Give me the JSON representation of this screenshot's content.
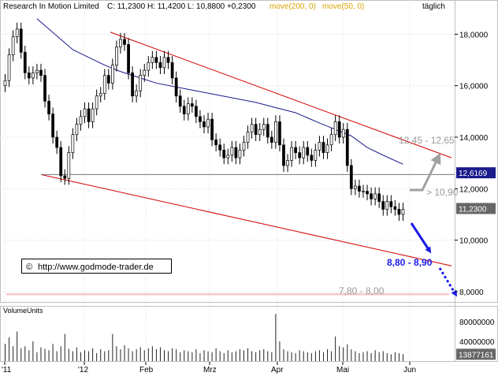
{
  "header": {
    "symbol": "Research In Motion Limited",
    "ohlc": "C: 11,2300  H: 11,4200  L: 10,8800  +0,2300",
    "ma1": "move(200, 0)",
    "ma2": "move(50, 0)",
    "period": "täglich"
  },
  "copyright": "http://www.godmode-trader.de",
  "volume_label": "VolumeUnits",
  "colors": {
    "candle": "#000000",
    "ma": "#1a1a8c",
    "channel": "#d40000",
    "support": "#000000",
    "price_box": "#1a1a8c",
    "support_box": "#666666",
    "zone": "#f7c6c6",
    "arrow_blue": "#1a1ae6",
    "arrow_grey": "#a0a0a0"
  },
  "chart_data": {
    "type": "candlestick",
    "title": "Research In Motion Limited",
    "x_labels": [
      "'11",
      "'12",
      "Feb",
      "Mrz",
      "Apr",
      "Mai",
      "Jun"
    ],
    "ylim": [
      7.6,
      18.9
    ],
    "y_ticks": [
      "18,0000",
      "16,0000",
      "14,0000",
      "12,0000",
      "10,0000",
      "8,0000"
    ],
    "y_tick_values": [
      18,
      16,
      14,
      12,
      10,
      8
    ],
    "last_price_label": "11,2300",
    "last_price": 11.23,
    "support_level_label": "12,6169",
    "support_level": 12.6169,
    "support_line_value": 12.55,
    "annotations": {
      "resistance_target": "12,45 - 12,65",
      "gt_level": "> 10,90",
      "blue_target": "8,80 - 8,90",
      "zone": "7,80 - 8,00"
    },
    "zone": [
      7.8,
      8.0
    ],
    "volume_axis": [
      "80000000",
      "40000000"
    ],
    "volume_axis_values": [
      80000000,
      40000000
    ],
    "last_volume_label": "13877161",
    "last_volume": 13877161,
    "volume_max": 96000000,
    "closes": [
      16.2,
      17.2,
      17.9,
      18.2,
      17.3,
      16.5,
      16.3,
      16.5,
      16.6,
      16.4,
      15.4,
      14.9,
      14.0,
      13.6,
      12.5,
      12.4,
      13.4,
      14.1,
      14.5,
      14.8,
      15.1,
      14.6,
      15.1,
      15.6,
      15.7,
      16.4,
      16.1,
      16.8,
      17.5,
      17.8,
      17.6,
      16.5,
      15.6,
      15.8,
      16.4,
      16.6,
      16.9,
      17.1,
      16.9,
      16.7,
      17.1,
      16.9,
      16.3,
      15.6,
      15.2,
      14.9,
      15.3,
      15.2,
      14.8,
      14.6,
      14.4,
      14.7,
      13.9,
      13.7,
      13.5,
      13.2,
      13.3,
      13.6,
      13.2,
      13.5,
      13.8,
      14.2,
      14.5,
      14.1,
      14.3,
      14.5,
      14.0,
      13.8,
      14.6,
      13.7,
      12.9,
      13.1,
      13.6,
      13.4,
      13.2,
      13.6,
      13.3,
      13.1,
      13.5,
      13.8,
      13.4,
      13.7,
      14.1,
      14.6,
      14.0,
      14.3,
      12.9,
      12.0,
      12.1,
      11.9,
      11.9,
      11.8,
      11.6,
      11.8,
      11.5,
      11.2,
      11.5,
      11.3,
      11.2,
      11.0,
      11.2
    ],
    "volumes": [
      35,
      48,
      30,
      60,
      26,
      30,
      22,
      40,
      18,
      28,
      25,
      22,
      35,
      20,
      30,
      55,
      25,
      20,
      28,
      18,
      22,
      20,
      26,
      16,
      24,
      20,
      22,
      55,
      30,
      24,
      32,
      26,
      20,
      24,
      28,
      22,
      26,
      30,
      24,
      28,
      22,
      20,
      26,
      24,
      18,
      22,
      20,
      18,
      24,
      16,
      22,
      20,
      18,
      26,
      20,
      16,
      22,
      18,
      20,
      24,
      22,
      26,
      20,
      18,
      22,
      24,
      20,
      18,
      96,
      40,
      24,
      20,
      18,
      16,
      22,
      20,
      18,
      16,
      20,
      22,
      18,
      24,
      20,
      50,
      30,
      28,
      34,
      24,
      20,
      16,
      18,
      20,
      16,
      22,
      18,
      20,
      16,
      14,
      18,
      16,
      14
    ],
    "ma200": [
      18.6,
      18.2,
      17.8,
      17.4,
      17.1,
      16.8,
      16.55,
      16.3,
      16.1,
      15.95,
      15.8,
      15.65,
      15.5,
      15.35,
      15.15,
      14.95,
      14.75,
      14.55,
      14.3,
      14.05,
      13.6,
      13.3,
      12.95
    ],
    "ma200_idx": [
      8,
      11,
      14,
      17,
      21,
      25,
      29,
      34,
      38,
      43,
      48,
      53,
      58,
      63,
      68,
      73,
      76,
      79,
      83,
      87,
      91,
      95,
      100
    ]
  }
}
